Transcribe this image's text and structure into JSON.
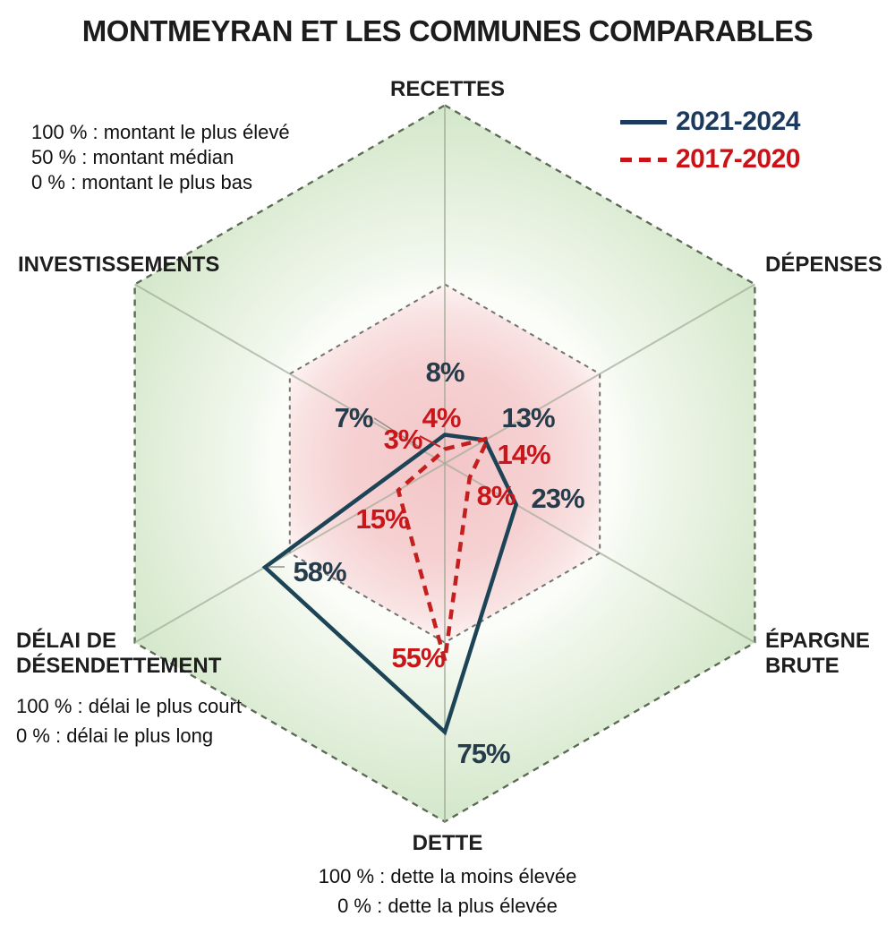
{
  "title": "MONTMEYRAN ET LES COMMUNES COMPARABLES",
  "legend": {
    "items": [
      {
        "label": "2021-2024",
        "color": "#1c3a5e",
        "style": "solid"
      },
      {
        "label": "2017-2020",
        "color": "#cc1217",
        "style": "dashed"
      }
    ]
  },
  "notes": {
    "top_left": [
      "100 % : montant le plus élevé",
      "50 % : montant médian",
      "0 % : montant le plus bas"
    ],
    "delai": [
      "100 % : délai le plus court",
      "0 % : délai le plus long"
    ],
    "dette": [
      "100 % : dette la moins élevée",
      "0 % : dette la plus élevée"
    ]
  },
  "axis_labels": {
    "recettes": "RECETTES",
    "depenses": "DÉPENSES",
    "epargne_line1": "ÉPARGNE",
    "epargne_line2": "BRUTE",
    "dette": "DETTE",
    "delai_line1": "DÉLAI DE",
    "delai_line2": "DÉSENDETTEMENT",
    "investissements": "INVESTISSEMENTS"
  },
  "chart_data": {
    "type": "radar",
    "title": "MONTMEYRAN ET LES COMMUNES COMPARABLES",
    "categories": [
      "RECETTES",
      "DÉPENSES",
      "ÉPARGNE BRUTE",
      "DETTE",
      "DÉLAI DE DÉSENDETTEMENT",
      "INVESTISSEMENTS"
    ],
    "series": [
      {
        "name": "2021-2024",
        "line": "solid",
        "color": "#1d4456",
        "label_color": "#273c4b",
        "values": [
          8,
          13,
          23,
          75,
          58,
          7
        ]
      },
      {
        "name": "2017-2020",
        "line": "dashed",
        "color": "#c41f1f",
        "label_color": "#c9161b",
        "values": [
          4,
          14,
          8,
          55,
          15,
          3
        ]
      }
    ],
    "scale": {
      "min": 0,
      "max": 100,
      "rings": [
        50,
        100
      ]
    },
    "value_suffix": "%",
    "colors": {
      "outer_ring_fill_edge": "#d3e7ca",
      "inner_ring_fill_center": "#f3c6c8",
      "outer_ring_border": "#5c6a54",
      "inner_ring_border": "#73736f",
      "axis_line": "#a2ab99"
    }
  }
}
